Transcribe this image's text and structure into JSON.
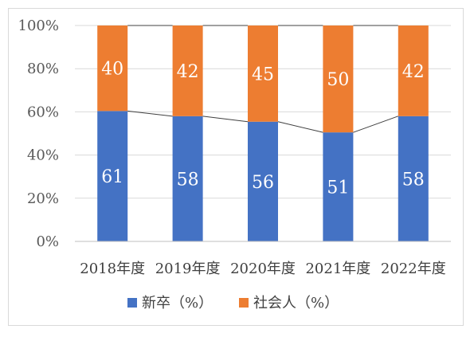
{
  "chart_data": {
    "type": "bar",
    "stacked": true,
    "percent": true,
    "categories": [
      "2018年度",
      "2019年度",
      "2020年度",
      "2021年度",
      "2022年度"
    ],
    "series": [
      {
        "name": "新卒（%）",
        "values": [
          61,
          58,
          56,
          51,
          58
        ],
        "color": "#4472c4"
      },
      {
        "name": "社会人（%）",
        "values": [
          40,
          42,
          45,
          50,
          42
        ],
        "color": "#ed7d31"
      }
    ],
    "y_ticks": [
      "0%",
      "20%",
      "40%",
      "60%",
      "80%",
      "100%"
    ],
    "ylim": [
      0,
      100
    ],
    "grid": true,
    "series_lines": true,
    "legend_position": "bottom"
  }
}
